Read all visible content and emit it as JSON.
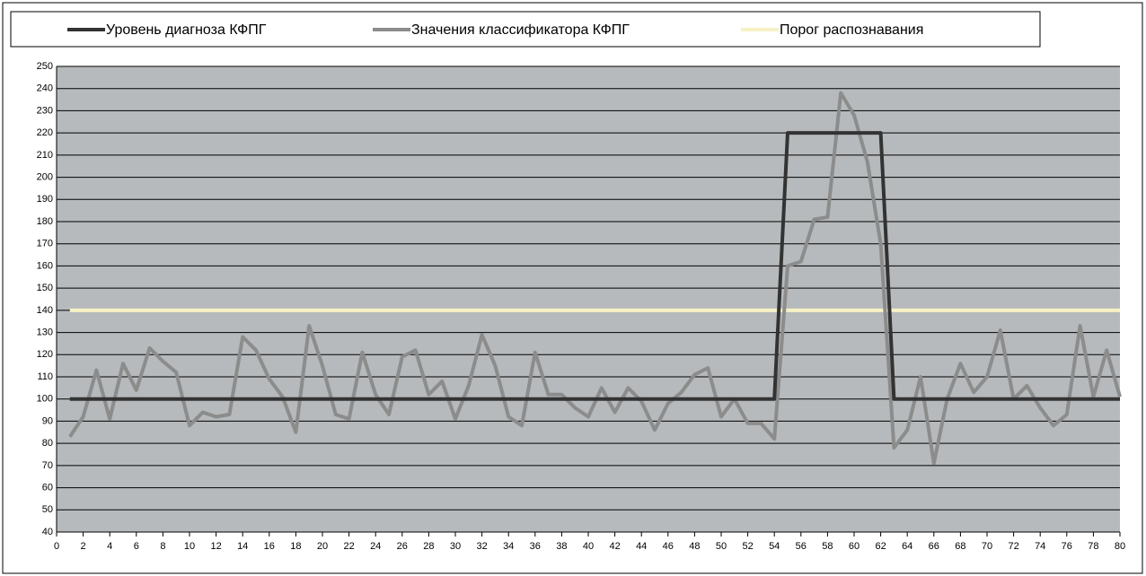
{
  "chart_data": {
    "type": "line",
    "x": [
      1,
      2,
      3,
      4,
      5,
      6,
      7,
      8,
      9,
      10,
      11,
      12,
      13,
      14,
      15,
      16,
      17,
      18,
      19,
      20,
      21,
      22,
      23,
      24,
      25,
      26,
      27,
      28,
      29,
      30,
      31,
      32,
      33,
      34,
      35,
      36,
      37,
      38,
      39,
      40,
      41,
      42,
      43,
      44,
      45,
      46,
      47,
      48,
      49,
      50,
      51,
      52,
      53,
      54,
      55,
      56,
      57,
      58,
      59,
      60,
      61,
      62,
      63,
      64,
      65,
      66,
      67,
      68,
      69,
      70,
      71,
      72,
      73,
      74,
      75,
      76,
      77,
      78,
      79,
      80
    ],
    "series": [
      {
        "name": "Уровень диагноза КФПГ",
        "color": "#333333",
        "step": true,
        "values": [
          100,
          100,
          100,
          100,
          100,
          100,
          100,
          100,
          100,
          100,
          100,
          100,
          100,
          100,
          100,
          100,
          100,
          100,
          100,
          100,
          100,
          100,
          100,
          100,
          100,
          100,
          100,
          100,
          100,
          100,
          100,
          100,
          100,
          100,
          100,
          100,
          100,
          100,
          100,
          100,
          100,
          100,
          100,
          100,
          100,
          100,
          100,
          100,
          100,
          100,
          100,
          100,
          100,
          100,
          220,
          220,
          220,
          220,
          220,
          220,
          220,
          220,
          100,
          100,
          100,
          100,
          100,
          100,
          100,
          100,
          100,
          100,
          100,
          100,
          100,
          100,
          100,
          100,
          100,
          100
        ]
      },
      {
        "name": "Значения классификатора КФПГ",
        "color": "#8c8c8c",
        "values": [
          83,
          92,
          113,
          91,
          116,
          104,
          123,
          117,
          112,
          88,
          94,
          92,
          93,
          128,
          122,
          109,
          101,
          85,
          133,
          115,
          93,
          91,
          121,
          102,
          93,
          119,
          122,
          102,
          108,
          91,
          106,
          129,
          115,
          92,
          88,
          121,
          102,
          102,
          96,
          92,
          105,
          94,
          105,
          99,
          86,
          98,
          103,
          111,
          114,
          92,
          100,
          89,
          89,
          82,
          160,
          162,
          181,
          182,
          238,
          228,
          207,
          170,
          78,
          86,
          110,
          71,
          100,
          116,
          103,
          110,
          131,
          100,
          106,
          96,
          88,
          93,
          133,
          101,
          122,
          101
        ]
      },
      {
        "name": "Порог распознавания",
        "color": "#f7f1c6",
        "values": [
          140,
          140,
          140,
          140,
          140,
          140,
          140,
          140,
          140,
          140,
          140,
          140,
          140,
          140,
          140,
          140,
          140,
          140,
          140,
          140,
          140,
          140,
          140,
          140,
          140,
          140,
          140,
          140,
          140,
          140,
          140,
          140,
          140,
          140,
          140,
          140,
          140,
          140,
          140,
          140,
          140,
          140,
          140,
          140,
          140,
          140,
          140,
          140,
          140,
          140,
          140,
          140,
          140,
          140,
          140,
          140,
          140,
          140,
          140,
          140,
          140,
          140,
          140,
          140,
          140,
          140,
          140,
          140,
          140,
          140,
          140,
          140,
          140,
          140,
          140,
          140,
          140,
          140,
          140,
          140
        ]
      }
    ],
    "xlim": [
      0,
      80
    ],
    "xticks": [
      0,
      2,
      4,
      6,
      8,
      10,
      12,
      14,
      16,
      18,
      20,
      22,
      24,
      26,
      28,
      30,
      32,
      34,
      36,
      38,
      40,
      42,
      44,
      46,
      48,
      50,
      52,
      54,
      56,
      58,
      60,
      62,
      64,
      66,
      68,
      70,
      72,
      74,
      76,
      78,
      80
    ],
    "ylim": [
      40,
      250
    ],
    "yticks": [
      40,
      50,
      60,
      70,
      80,
      90,
      100,
      110,
      120,
      130,
      140,
      150,
      160,
      170,
      180,
      190,
      200,
      210,
      220,
      230,
      240,
      250
    ],
    "grid": true,
    "legend": "top"
  }
}
